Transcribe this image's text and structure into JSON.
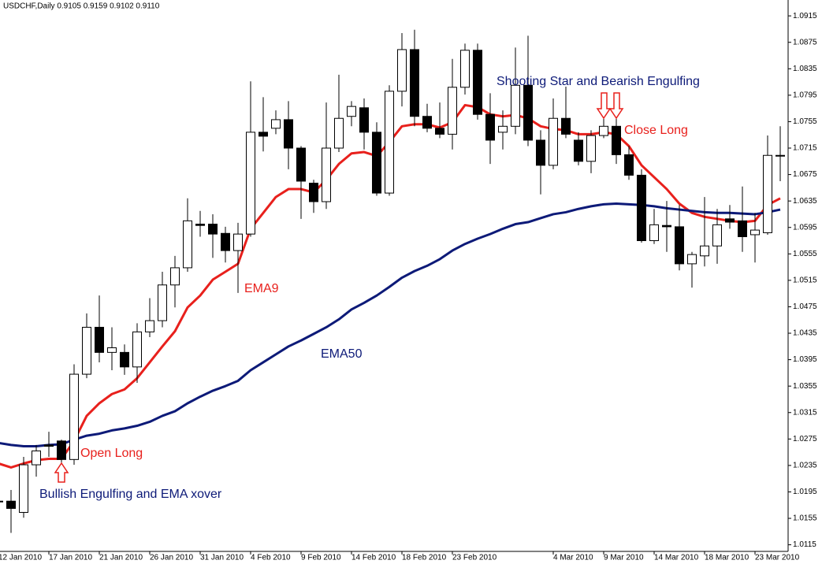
{
  "chart_data": {
    "type": "candlestick",
    "title": "USDCHF,Daily 0.9105 0.9159 0.9102 0.9110",
    "categories": [
      "12 Jan 2010",
      null,
      null,
      null,
      "17 Jan 2010",
      null,
      null,
      null,
      "21 Jan 2010",
      null,
      null,
      null,
      "26 Jan 2010",
      null,
      null,
      null,
      "31 Jan 2010",
      null,
      null,
      null,
      "4 Feb 2010",
      null,
      null,
      null,
      "9 Feb 2010",
      null,
      null,
      null,
      "14 Feb 2010",
      null,
      null,
      null,
      "18 Feb 2010",
      null,
      null,
      null,
      "23 Feb 2010",
      null,
      null,
      null,
      null,
      null,
      null,
      null,
      "4 Mar 2010",
      null,
      null,
      null,
      "9 Mar 2010",
      null,
      null,
      null,
      "14 Mar 2010",
      null,
      null,
      null,
      "18 Mar 2010",
      null,
      null,
      null,
      "23 Mar 2010",
      null,
      null
    ],
    "open": [
      1.0181,
      1.0181,
      1.0164,
      1.0236,
      1.0266,
      1.0272,
      1.0244,
      1.0373,
      1.0444,
      1.0406,
      1.0406,
      1.0384,
      1.0437,
      1.0454,
      1.0508,
      1.0534,
      1.06,
      1.06,
      1.0586,
      1.056,
      1.0585,
      1.0739,
      1.0745,
      1.0758,
      1.0715,
      1.0662,
      1.0634,
      1.0715,
      1.0763,
      1.0776,
      1.0739,
      1.0647,
      1.0801,
      1.0864,
      1.0763,
      1.0745,
      1.0736,
      1.0807,
      1.0863,
      1.0766,
      1.0739,
      1.0748,
      1.081,
      1.0727,
      1.0689,
      1.076,
      1.0727,
      1.0695,
      1.0734,
      1.0748,
      1.0705,
      1.0674,
      1.0575,
      1.0598,
      1.0596,
      1.054,
      1.0552,
      1.0567,
      1.0608,
      1.0605,
      1.0584,
      1.0587,
      1.0704
    ],
    "high": [
      1.0183,
      1.0198,
      1.0248,
      1.0266,
      1.0286,
      1.0274,
      1.0388,
      1.0465,
      1.0492,
      1.0444,
      1.0418,
      1.045,
      1.0488,
      1.0528,
      1.0552,
      1.0639,
      1.062,
      1.0615,
      1.0596,
      1.0602,
      1.0816,
      1.0792,
      1.0772,
      1.0786,
      1.0718,
      1.0667,
      1.0784,
      1.0826,
      1.0786,
      1.079,
      1.0754,
      1.081,
      1.0889,
      1.0894,
      1.0782,
      1.0784,
      1.085,
      1.0873,
      1.0873,
      1.0798,
      1.0772,
      1.0867,
      1.0885,
      1.0742,
      1.079,
      1.0808,
      1.0739,
      1.0742,
      1.0798,
      1.076,
      1.0718,
      1.0683,
      1.0623,
      1.0635,
      1.0629,
      1.0558,
      1.0641,
      1.0623,
      1.0629,
      1.0657,
      1.0617,
      1.0734,
      1.0748
    ],
    "low": [
      1.0179,
      1.0133,
      1.0156,
      1.0218,
      1.0248,
      1.0226,
      1.0236,
      1.0367,
      1.0391,
      1.0379,
      1.0372,
      1.036,
      1.0429,
      1.0444,
      1.0474,
      1.0528,
      1.0581,
      1.0549,
      1.0542,
      1.0496,
      1.0581,
      1.071,
      1.0736,
      1.0683,
      1.0608,
      1.0617,
      1.0623,
      1.0709,
      1.0748,
      1.0713,
      1.0643,
      1.0643,
      1.0778,
      1.0748,
      1.0739,
      1.073,
      1.0713,
      1.0796,
      1.0758,
      1.0691,
      1.0713,
      1.0736,
      1.0718,
      1.0645,
      1.0683,
      1.073,
      1.0689,
      1.0677,
      1.073,
      1.0691,
      1.0667,
      1.0572,
      1.057,
      1.0558,
      1.053,
      1.0504,
      1.0536,
      1.054,
      1.0593,
      1.0558,
      1.0542,
      1.0584,
      1.0665
    ],
    "close": [
      1.0181,
      1.017,
      1.0236,
      1.0257,
      1.0264,
      1.0244,
      1.0373,
      1.0444,
      1.0406,
      1.0413,
      1.0384,
      1.0437,
      1.0454,
      1.0508,
      1.0534,
      1.0605,
      1.0598,
      1.0585,
      1.056,
      1.0585,
      1.0739,
      1.0733,
      1.0758,
      1.0715,
      1.0665,
      1.0634,
      1.0715,
      1.076,
      1.0778,
      1.0739,
      1.0647,
      1.0801,
      1.0864,
      1.0763,
      1.0745,
      1.0736,
      1.0807,
      1.0863,
      1.0766,
      1.0727,
      1.0748,
      1.081,
      1.0727,
      1.0689,
      1.076,
      1.0736,
      1.0695,
      1.0734,
      1.0748,
      1.0705,
      1.0674,
      1.0575,
      1.0599,
      1.0596,
      1.054,
      1.0554,
      1.0567,
      1.0599,
      1.0603,
      1.0581,
      1.0591,
      1.0704,
      1.0703
    ],
    "up_color": "#ffffff",
    "down_color": "#000000",
    "lines": [
      {
        "name": "EMA9",
        "color": "#e8201c",
        "values": [
          1.0238,
          1.0232,
          1.0238,
          1.0243,
          1.0245,
          1.0245,
          1.0272,
          1.031,
          1.0329,
          1.0343,
          1.035,
          1.0367,
          1.0391,
          1.0415,
          1.0438,
          1.0474,
          1.0492,
          1.0516,
          1.0528,
          1.054,
          1.0593,
          1.0617,
          1.0641,
          1.0653,
          1.0653,
          1.0648,
          1.0667,
          1.0691,
          1.0707,
          1.0709,
          1.0703,
          1.0724,
          1.0748,
          1.0751,
          1.0751,
          1.0746,
          1.0754,
          1.078,
          1.0777,
          1.0766,
          1.0763,
          1.0765,
          1.076,
          1.0748,
          1.0744,
          1.0742,
          1.0736,
          1.0736,
          1.0739,
          1.0736,
          1.0718,
          1.0689,
          1.0671,
          1.0653,
          1.0631,
          1.0617,
          1.0611,
          1.0608,
          1.0605,
          1.0603,
          1.0605,
          1.0629,
          1.0639
        ]
      },
      {
        "name": "EMA50",
        "color": "#0d1a78",
        "values": [
          1.0269,
          1.0266,
          1.0264,
          1.0264,
          1.0266,
          1.0267,
          1.0274,
          1.028,
          1.0283,
          1.0288,
          1.0291,
          1.0295,
          1.0301,
          1.031,
          1.0317,
          1.0329,
          1.0339,
          1.0348,
          1.0355,
          1.0363,
          1.0379,
          1.0391,
          1.0403,
          1.0415,
          1.0424,
          1.0434,
          1.0444,
          1.0456,
          1.0471,
          1.0481,
          1.0492,
          1.0505,
          1.0519,
          1.0529,
          1.0537,
          1.0547,
          1.056,
          1.057,
          1.0578,
          1.0585,
          1.0593,
          1.06,
          1.0603,
          1.0609,
          1.0615,
          1.0618,
          1.0623,
          1.0627,
          1.063,
          1.0631,
          1.063,
          1.0629,
          1.0627,
          1.0624,
          1.0622,
          1.062,
          1.0618,
          1.0617,
          1.0617,
          1.0616,
          1.0615,
          1.0618,
          1.0622
        ]
      }
    ],
    "annotations": [
      {
        "text": "Shooting Star and Bearish Engulfing",
        "color": "#0d1a78"
      },
      {
        "text": "Close Long",
        "color": "#e8201c"
      },
      {
        "text": "Open Long",
        "color": "#e8201c"
      },
      {
        "text": "Bullish Engulfing and EMA xover",
        "color": "#0d1a78"
      }
    ],
    "ylim": [
      1.0105,
      1.0939
    ],
    "yticks": [
      1.0915,
      1.0875,
      1.0835,
      1.0795,
      1.0755,
      1.0715,
      1.0675,
      1.0635,
      1.0595,
      1.0555,
      1.0515,
      1.0475,
      1.0435,
      1.0395,
      1.0355,
      1.0315,
      1.0275,
      1.0235,
      1.0195,
      1.0155,
      1.0115
    ]
  }
}
